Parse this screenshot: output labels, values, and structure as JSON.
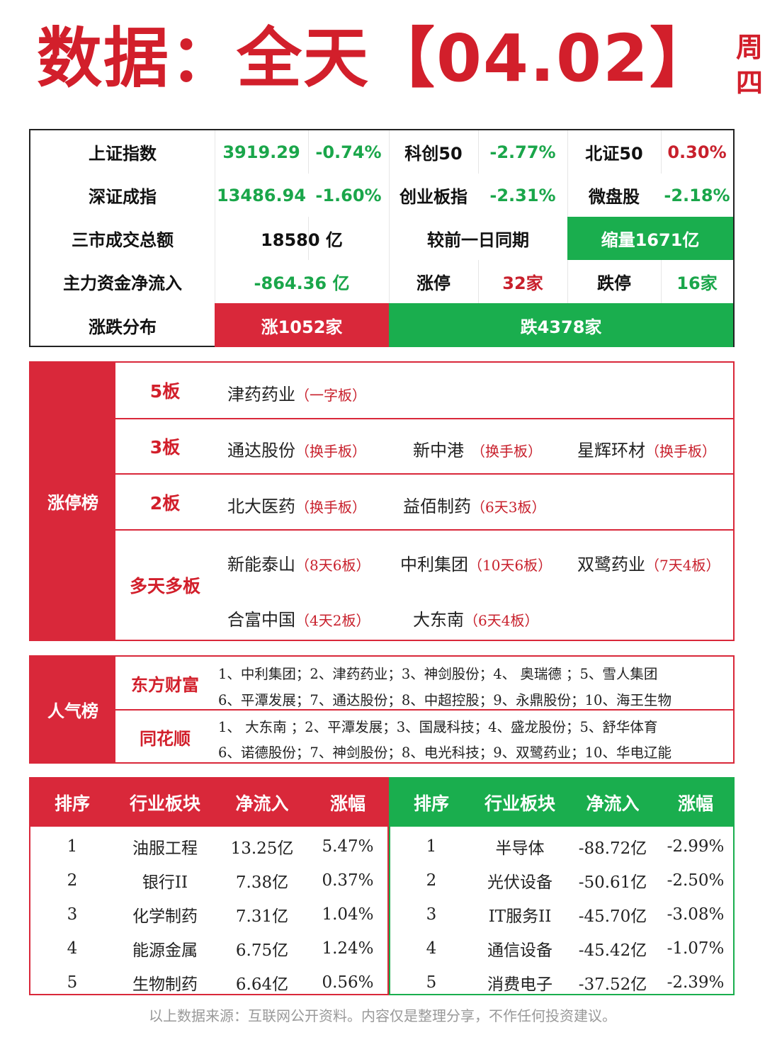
{
  "header": {
    "title": "数据：全天【04.02】",
    "weekday": "周四"
  },
  "summary": {
    "row1": {
      "sh_label": "上证指数",
      "sh_value": "3919.29",
      "sh_pct": "-0.74%",
      "kc_label": "科创50",
      "kc_pct": "-2.77%",
      "bz_label": "北证50",
      "bz_pct": "0.30%"
    },
    "row2": {
      "sz_label": "深证成指",
      "sz_value": "13486.94",
      "sz_pct": "-1.60%",
      "cy_label": "创业板指",
      "cy_pct": "-2.31%",
      "wp_label": "微盘股",
      "wp_pct": "-2.18%"
    },
    "row3": {
      "turnover_label": "三市成交总额",
      "turnover_value": "18580 亿",
      "compare_label": "较前一日同期",
      "compare_value": "缩量1671亿"
    },
    "row4": {
      "flow_label": "主力资金净流入",
      "flow_value": "-864.36 亿",
      "up_label": "涨停",
      "up_value": "32家",
      "down_label": "跌停",
      "down_value": "16家"
    },
    "row5": {
      "dist_label": "涨跌分布",
      "rise": "涨1052家",
      "fall": "跌4378家"
    }
  },
  "limit_board": {
    "title": "涨停榜",
    "rows": [
      {
        "label": "5板",
        "stocks": [
          {
            "name": "津药药业",
            "tag": "（一字板）"
          }
        ]
      },
      {
        "label": "3板",
        "stocks": [
          {
            "name": "通达股份",
            "tag": "（换手板）"
          },
          {
            "name": "新中港",
            "tag": "（换手板）"
          },
          {
            "name": "星辉环材",
            "tag": "（换手板）"
          }
        ]
      },
      {
        "label": "2板",
        "stocks": [
          {
            "name": "北大医药",
            "tag": "（换手板）"
          },
          {
            "name": "益佰制药",
            "tag": "（6天3板）"
          }
        ]
      },
      {
        "label": "多天多板",
        "stocks": [
          {
            "name": "新能泰山",
            "tag": "（8天6板）"
          },
          {
            "name": "中利集团",
            "tag": "（10天6板）"
          },
          {
            "name": "双鹭药业",
            "tag": "（7天4板）"
          },
          {
            "name": "合富中国",
            "tag": "（4天2板）"
          },
          {
            "name": "大东南",
            "tag": "（6天4板）"
          }
        ]
      }
    ]
  },
  "popularity": {
    "title": "人气榜",
    "eastmoney": {
      "label": "东方财富",
      "line1": "1、中利集团；2、津药药业；3、神剑股份；4、 奥瑞德 ；5、雪人集团",
      "line2": "6、平潭发展；7、通达股份；8、中超控股；9、永鼎股份；10、海王生物"
    },
    "ths": {
      "label": "同花顺",
      "line1": "1、  大东南 ；2、平潭发展；3、国晟科技；4、盛龙股份；5、舒华体育",
      "line2": "6、诺德股份；7、神剑股份；8、电光科技；9、双鹭药业；10、华电辽能"
    }
  },
  "inflow_table": {
    "headers": [
      "排序",
      "行业板块",
      "净流入",
      "涨幅"
    ],
    "rows": [
      [
        "1",
        "油服工程",
        "13.25亿",
        "5.47%"
      ],
      [
        "2",
        "银行II",
        "7.38亿",
        "0.37%"
      ],
      [
        "3",
        "化学制药",
        "7.31亿",
        "1.04%"
      ],
      [
        "4",
        "能源金属",
        "6.75亿",
        "1.24%"
      ],
      [
        "5",
        "生物制药",
        "6.64亿",
        "0.56%"
      ]
    ]
  },
  "outflow_table": {
    "headers": [
      "排序",
      "行业板块",
      "净流入",
      "涨幅"
    ],
    "rows": [
      [
        "1",
        "半导体",
        "-88.72亿",
        "-2.99%"
      ],
      [
        "2",
        "光伏设备",
        "-50.61亿",
        "-2.50%"
      ],
      [
        "3",
        "IT服务II",
        "-45.70亿",
        "-3.08%"
      ],
      [
        "4",
        "通信设备",
        "-45.42亿",
        "-1.07%"
      ],
      [
        "5",
        "消费电子",
        "-37.52亿",
        "-2.39%"
      ]
    ]
  },
  "footer": "以上数据来源：互联网公开资料。内容仅是整理分享，不作任何投资建议。",
  "colors": {
    "red": "#d9283a",
    "green": "#1aae4e"
  }
}
